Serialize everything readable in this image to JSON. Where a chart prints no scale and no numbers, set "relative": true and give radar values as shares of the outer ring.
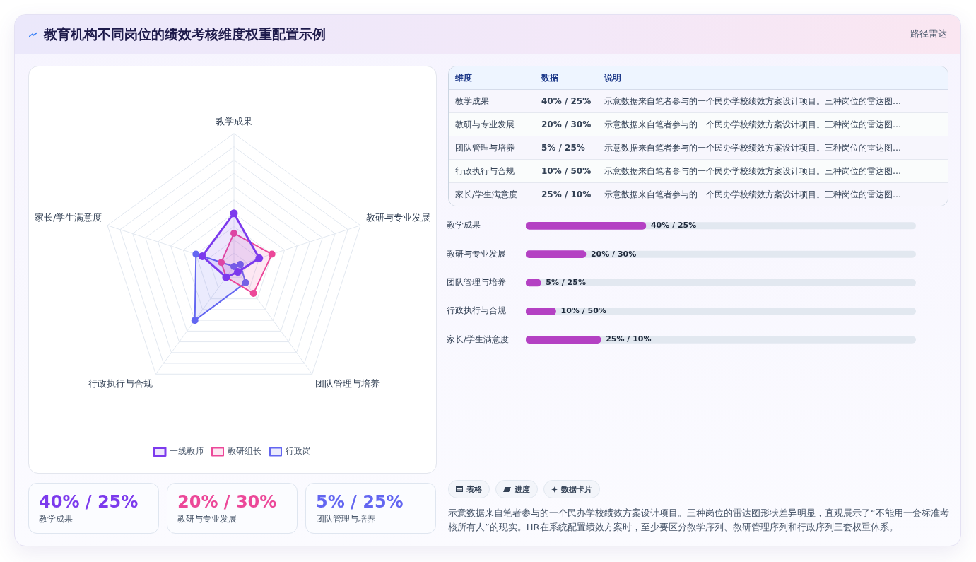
{
  "chart_data": [
    {
      "type": "radar",
      "title": "教育机构不同岗位的绩效考核维度权重配置示例",
      "categories": [
        "教学成果",
        "教研与专业发展",
        "团队管理与培养",
        "行政执行与合规",
        "家长/学生满意度"
      ],
      "relative": true,
      "series": [
        {
          "name": "一线教师",
          "color": "#7c3aed",
          "values": [
            0.4,
            0.2,
            0.05,
            0.1,
            0.25
          ]
        },
        {
          "name": "教研组长",
          "color": "#ec4899",
          "values": [
            0.25,
            0.3,
            0.25,
            0.1,
            0.1
          ]
        },
        {
          "name": "行政岗",
          "color": "#6366f1",
          "values": [
            0,
            0.05,
            0.15,
            0.5,
            0.3
          ]
        }
      ],
      "grid": true,
      "legend": "bottom",
      "marker": "circle"
    },
    {
      "type": "other",
      "subtitle": "路径雷达",
      "categories": [
        "维度",
        "数据",
        "说明"
      ],
      "y_categories": [
        "教学成果",
        "教研与专业发展",
        "团队管理与培养",
        "行政执行与合规",
        "家长/学生满意度"
      ],
      "cell_labels": [
        [
          "40% / 25%",
          "示意数据来自笔者参与的一个民办学校绩效方案设计项目。三种岗位的雷达图…"
        ],
        [
          "20% / 30%",
          "示意数据来自笔者参与的一个民办学校绩效方案设计项目。三种岗位的雷达图…"
        ],
        [
          "5% / 25%",
          "示意数据来自笔者参与的一个民办学校绩效方案设计项目。三种岗位的雷达图…"
        ],
        [
          "10% / 50%",
          "示意数据来自笔者参与的一个民办学校绩效方案设计项目。三种岗位的雷达图…"
        ],
        [
          "25% / 10%",
          "示意数据来自笔者参与的一个民办学校绩效方案设计项目。三种岗位的雷达图…"
        ]
      ]
    },
    {
      "type": "bar",
      "orientation": "horizontal",
      "categories": [
        "教学成果",
        "教研与专业发展",
        "团队管理与培养",
        "行政执行与合规",
        "家长/学生满意度"
      ],
      "values": [
        40,
        20,
        5,
        10,
        25
      ],
      "color": "#b441c3",
      "xlim": [
        0,
        130
      ],
      "tick_labels": "y",
      "value_labels": [
        "40% / 25%",
        "20% / 30%",
        "5% / 25%",
        "10% / 50%",
        "25% / 10%"
      ]
    },
    {
      "type": "other",
      "categories": [
        "教学成果",
        "教研与专业发展",
        "团队管理与培养"
      ],
      "value_labels": [
        "40% / 25%",
        "20% / 30%",
        "5% / 25%"
      ]
    },
    {
      "type": "other",
      "categories": [
        "表格",
        "进度",
        "数据卡片"
      ],
      "annotations": [
        "示意数据来自笔者参与的一个民办学校绩效方案设计项目。三种岗位的雷达图形状差异明显，直观展示了“不能用一套标准考核所有人”的现实。HR在系统配置绩效方案时，至少要区分教学序列、教研管理序列和行政序列三套权重体系。"
      ]
    }
  ]
}
